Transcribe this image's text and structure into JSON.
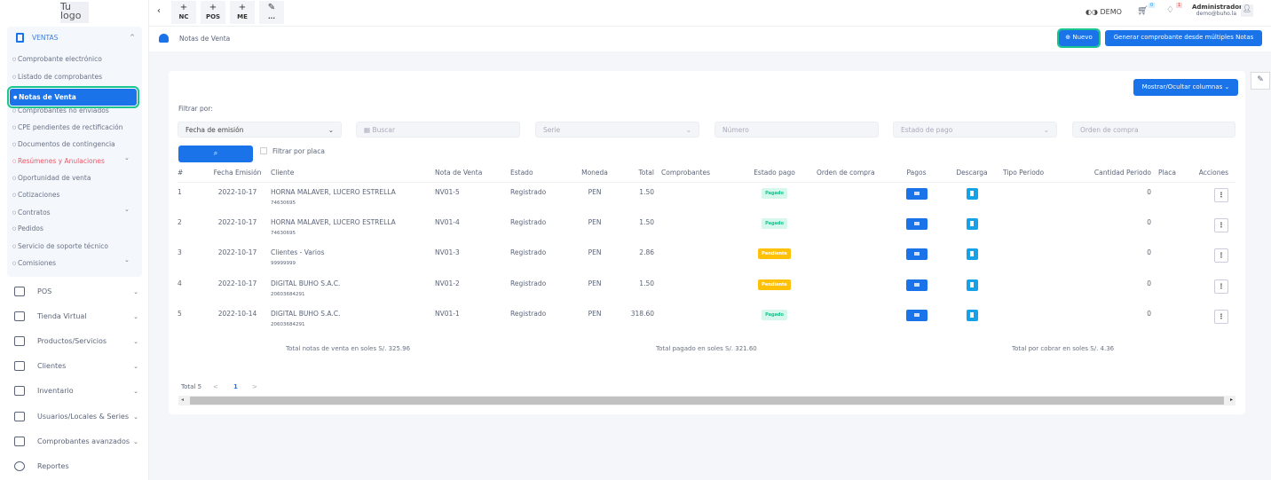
{
  "logo": "Tu logo",
  "sidebar": {
    "section": "VENTAS",
    "sub_items": [
      "Comprobante electrónico",
      "Listado de comprobantes",
      "Notas de Venta",
      "Comprobantes no enviados",
      "CPE pendientes de rectificación",
      "Documentos de contingencia",
      "Resúmenes y Anulaciones",
      "Oportunidad de venta",
      "Cotizaciones",
      "Contratos",
      "Pedidos",
      "Servicio de soporte técnico",
      "Comisiones"
    ],
    "active": "Notas de Venta",
    "menu": [
      "POS",
      "Tienda Virtual",
      "Productos/Servicios",
      "Clientes",
      "Inventario",
      "Usuarios/Locales & Series",
      "Comprobantes avanzados",
      "Reportes"
    ]
  },
  "topbar": {
    "quick": [
      {
        "icon": "+",
        "label": "NC"
      },
      {
        "icon": "+",
        "label": "POS"
      },
      {
        "icon": "+",
        "label": "ME"
      },
      {
        "icon": "✎",
        "label": "..."
      }
    ],
    "demo": "DEMO",
    "cart_count": "0",
    "notif_count": "1",
    "user_name": "Administrador",
    "user_email": "demo@buho.la"
  },
  "header": {
    "title": "Notas de Venta",
    "new_button": "Nuevo",
    "generate_button": "Generar comprobante desde múltiples Notas"
  },
  "filters": {
    "toggle_columns": "Mostrar/Ocultar columnas",
    "label": "Filtrar por:",
    "date_filter": "Fecha de emisión",
    "search_placeholder": "Buscar",
    "serie_placeholder": "Serie",
    "numero_placeholder": "Número",
    "estado_pago_placeholder": "Estado de pago",
    "orden_placeholder": "Orden de compra",
    "placa_label": "Filtrar por placa"
  },
  "table": {
    "columns": [
      "#",
      "Fecha Emisión",
      "Cliente",
      "Nota de Venta",
      "Estado",
      "Moneda",
      "Total",
      "Comprobantes",
      "Estado pago",
      "Orden de compra",
      "Pagos",
      "Descarga",
      "Tipo Periodo",
      "Cantidad Periodo",
      "Placa",
      "Acciones"
    ],
    "rows": [
      {
        "n": "1",
        "fecha": "2022-10-17",
        "cliente": "HORNA MALAVER, LUCERO ESTRELLA",
        "doc": "74630695",
        "nota": "NV01-5",
        "estado": "Registrado",
        "moneda": "PEN",
        "total": "1.50",
        "pago": "Pagado",
        "cantidad": "0"
      },
      {
        "n": "2",
        "fecha": "2022-10-17",
        "cliente": "HORNA MALAVER, LUCERO ESTRELLA",
        "doc": "74630695",
        "nota": "NV01-4",
        "estado": "Registrado",
        "moneda": "PEN",
        "total": "1.50",
        "pago": "Pagado",
        "cantidad": "0"
      },
      {
        "n": "3",
        "fecha": "2022-10-17",
        "cliente": "Clientes - Varios",
        "doc": "99999999",
        "nota": "NV01-3",
        "estado": "Registrado",
        "moneda": "PEN",
        "total": "2.86",
        "pago": "Pendiente",
        "cantidad": "0"
      },
      {
        "n": "4",
        "fecha": "2022-10-17",
        "cliente": "DIGITAL BUHO S.A.C.",
        "doc": "20603684291",
        "nota": "NV01-2",
        "estado": "Registrado",
        "moneda": "PEN",
        "total": "1.50",
        "pago": "Pendiente",
        "cantidad": "0"
      },
      {
        "n": "5",
        "fecha": "2022-10-14",
        "cliente": "DIGITAL BUHO S.A.C.",
        "doc": "20603684291",
        "nota": "NV01-1",
        "estado": "Registrado",
        "moneda": "PEN",
        "total": "318.60",
        "pago": "Pagado",
        "cantidad": "0"
      }
    ]
  },
  "totals": {
    "ventas": "Total notas de venta en soles S/. 325.96",
    "pagado": "Total pagado en soles S/. 321.60",
    "por_cobrar": "Total por cobrar en soles S/. 4.36"
  },
  "pagination": {
    "total": "Total 5",
    "page": "1",
    "prev": "<",
    "next": ">"
  },
  "colors": {
    "primary": "#1a73e8",
    "paid": "#15c48c",
    "pending": "#ffc107",
    "focus": "#19c690"
  }
}
